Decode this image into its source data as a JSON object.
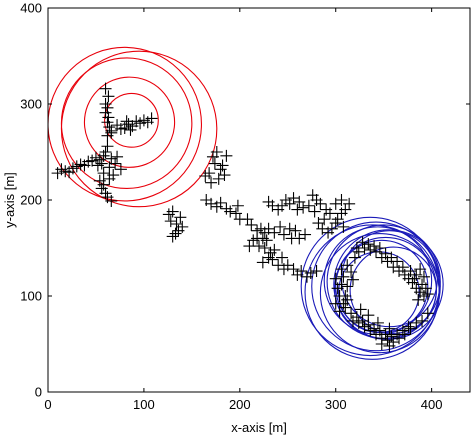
{
  "chart_data": {
    "type": "scatter",
    "xlabel": "x-axis [m]",
    "ylabel": "y-axis [m]",
    "xlim": [
      0,
      440
    ],
    "ylim": [
      0,
      400
    ],
    "xticks": [
      "0",
      "100",
      "200",
      "300",
      "400"
    ],
    "yticks": [
      "0",
      "100",
      "200",
      "300",
      "400"
    ],
    "grid": false,
    "marker_color": "#000000",
    "points": [
      [
        10,
        228
      ],
      [
        14,
        232
      ],
      [
        18,
        230
      ],
      [
        22,
        229
      ],
      [
        26,
        233
      ],
      [
        30,
        235
      ],
      [
        34,
        237
      ],
      [
        38,
        236
      ],
      [
        42,
        240
      ],
      [
        46,
        241
      ],
      [
        50,
        244
      ],
      [
        54,
        242
      ],
      [
        60,
        250
      ],
      [
        58,
        246
      ],
      [
        62,
        256
      ],
      [
        66,
        243
      ],
      [
        70,
        238
      ],
      [
        76,
        232
      ],
      [
        72,
        245
      ],
      [
        64,
        234
      ],
      [
        56,
        238
      ],
      [
        52,
        236
      ],
      [
        60,
        300
      ],
      [
        62,
        296
      ],
      [
        60,
        291
      ],
      [
        63,
        286
      ],
      [
        62,
        281
      ],
      [
        64,
        276
      ],
      [
        66,
        272
      ],
      [
        62,
        267
      ],
      [
        60,
        316
      ],
      [
        63,
        308
      ],
      [
        66,
        270
      ],
      [
        72,
        278
      ],
      [
        80,
        275
      ],
      [
        84,
        279
      ],
      [
        88,
        277
      ],
      [
        92,
        282
      ],
      [
        96,
        280
      ],
      [
        100,
        283
      ],
      [
        104,
        281
      ],
      [
        108,
        285
      ],
      [
        82,
        282
      ],
      [
        76,
        274
      ],
      [
        86,
        273
      ],
      [
        56,
        212
      ],
      [
        58,
        216
      ],
      [
        60,
        207
      ],
      [
        62,
        203
      ],
      [
        66,
        199
      ],
      [
        64,
        222
      ],
      [
        54,
        220
      ],
      [
        58,
        228
      ],
      [
        68,
        226
      ],
      [
        164,
        225
      ],
      [
        168,
        228
      ],
      [
        172,
        245
      ],
      [
        176,
        250
      ],
      [
        174,
        238
      ],
      [
        180,
        232
      ],
      [
        184,
        226
      ],
      [
        178,
        222
      ],
      [
        170,
        218
      ],
      [
        186,
        246
      ],
      [
        182,
        236
      ],
      [
        165,
        200
      ],
      [
        170,
        196
      ],
      [
        176,
        193
      ],
      [
        186,
        191
      ],
      [
        180,
        197
      ],
      [
        190,
        188
      ],
      [
        198,
        194
      ],
      [
        196,
        186
      ],
      [
        200,
        180
      ],
      [
        126,
        185
      ],
      [
        130,
        188
      ],
      [
        134,
        175
      ],
      [
        136,
        168
      ],
      [
        130,
        162
      ],
      [
        128,
        178
      ],
      [
        138,
        182
      ],
      [
        140,
        172
      ],
      [
        133,
        165
      ],
      [
        208,
        180
      ],
      [
        212,
        174
      ],
      [
        218,
        168
      ],
      [
        222,
        170
      ],
      [
        226,
        166
      ],
      [
        214,
        158
      ],
      [
        220,
        152
      ],
      [
        226,
        150
      ],
      [
        232,
        145
      ],
      [
        236,
        148
      ],
      [
        230,
        140
      ],
      [
        224,
        135
      ],
      [
        218,
        160
      ],
      [
        210,
        152
      ],
      [
        228,
        158
      ],
      [
        230,
        198
      ],
      [
        234,
        194
      ],
      [
        240,
        190
      ],
      [
        244,
        194
      ],
      [
        248,
        200
      ],
      [
        252,
        196
      ],
      [
        256,
        202
      ],
      [
        262,
        198
      ],
      [
        266,
        192
      ],
      [
        260,
        190
      ],
      [
        224,
        160
      ],
      [
        230,
        170
      ],
      [
        236,
        166
      ],
      [
        242,
        172
      ],
      [
        246,
        164
      ],
      [
        252,
        170
      ],
      [
        258,
        168
      ],
      [
        262,
        160
      ],
      [
        268,
        164
      ],
      [
        254,
        160
      ],
      [
        234,
        138
      ],
      [
        240,
        132
      ],
      [
        246,
        128
      ],
      [
        250,
        132
      ],
      [
        256,
        128
      ],
      [
        260,
        122
      ],
      [
        264,
        126
      ],
      [
        270,
        120
      ],
      [
        274,
        124
      ],
      [
        280,
        126
      ],
      [
        244,
        140
      ],
      [
        276,
        205
      ],
      [
        280,
        200
      ],
      [
        284,
        196
      ],
      [
        290,
        190
      ],
      [
        294,
        186
      ],
      [
        288,
        180
      ],
      [
        282,
        176
      ],
      [
        286,
        170
      ],
      [
        292,
        166
      ],
      [
        296,
        170
      ],
      [
        300,
        176
      ],
      [
        302,
        180
      ],
      [
        306,
        186
      ],
      [
        310,
        190
      ],
      [
        314,
        196
      ],
      [
        306,
        200
      ],
      [
        300,
        196
      ],
      [
        278,
        188
      ],
      [
        272,
        194
      ],
      [
        308,
        172
      ],
      [
        302,
        108
      ],
      [
        306,
        112
      ],
      [
        300,
        118
      ],
      [
        308,
        120
      ],
      [
        304,
        100
      ],
      [
        312,
        110
      ],
      [
        310,
        100
      ],
      [
        316,
        125
      ],
      [
        312,
        132
      ],
      [
        306,
        128
      ],
      [
        318,
        117
      ],
      [
        320,
        140
      ],
      [
        324,
        146
      ],
      [
        330,
        150
      ],
      [
        336,
        148
      ],
      [
        342,
        146
      ],
      [
        348,
        140
      ],
      [
        354,
        136
      ],
      [
        360,
        130
      ],
      [
        366,
        126
      ],
      [
        372,
        122
      ],
      [
        376,
        118
      ],
      [
        322,
        150
      ],
      [
        328,
        156
      ],
      [
        334,
        154
      ],
      [
        340,
        152
      ],
      [
        346,
        150
      ],
      [
        352,
        144
      ],
      [
        358,
        140
      ],
      [
        364,
        136
      ],
      [
        370,
        130
      ],
      [
        378,
        126
      ],
      [
        384,
        122
      ],
      [
        380,
        114
      ],
      [
        384,
        108
      ],
      [
        388,
        104
      ],
      [
        392,
        100
      ],
      [
        386,
        96
      ],
      [
        382,
        118
      ],
      [
        390,
        112
      ],
      [
        394,
        108
      ],
      [
        396,
        102
      ],
      [
        388,
        128
      ],
      [
        392,
        120
      ],
      [
        310,
        88
      ],
      [
        316,
        82
      ],
      [
        322,
        78
      ],
      [
        328,
        74
      ],
      [
        334,
        70
      ],
      [
        340,
        66
      ],
      [
        346,
        64
      ],
      [
        352,
        60
      ],
      [
        358,
        58
      ],
      [
        364,
        60
      ],
      [
        370,
        64
      ],
      [
        376,
        68
      ],
      [
        318,
        74
      ],
      [
        324,
        72
      ],
      [
        330,
        68
      ],
      [
        336,
        64
      ],
      [
        342,
        60
      ],
      [
        348,
        56
      ],
      [
        354,
        54
      ],
      [
        360,
        52
      ],
      [
        366,
        56
      ],
      [
        372,
        60
      ],
      [
        378,
        66
      ],
      [
        384,
        72
      ],
      [
        304,
        84
      ],
      [
        308,
        92
      ],
      [
        300,
        92
      ],
      [
        312,
        96
      ],
      [
        326,
        86
      ],
      [
        334,
        80
      ],
      [
        344,
        72
      ],
      [
        356,
        66
      ],
      [
        390,
        74
      ],
      [
        396,
        82
      ],
      [
        356,
        48
      ],
      [
        348,
        50
      ]
    ],
    "circles": [
      {
        "cx": 87,
        "cy": 283,
        "r": 28,
        "color": "#e8000b"
      },
      {
        "cx": 85,
        "cy": 281,
        "r": 47,
        "color": "#e8000b"
      },
      {
        "cx": 82,
        "cy": 280,
        "r": 68,
        "color": "#e8000b"
      },
      {
        "cx": 80,
        "cy": 279,
        "r": 80,
        "color": "#e8000b"
      },
      {
        "cx": 95,
        "cy": 274,
        "r": 81,
        "color": "#e8000b"
      },
      {
        "cx": 345,
        "cy": 104,
        "r": 42,
        "color": "#1a1ab8"
      },
      {
        "cx": 348,
        "cy": 110,
        "r": 48,
        "color": "#1a1ab8"
      },
      {
        "cx": 352,
        "cy": 108,
        "r": 53,
        "color": "#1a1ab8"
      },
      {
        "cx": 355,
        "cy": 112,
        "r": 57,
        "color": "#1a1ab8"
      },
      {
        "cx": 350,
        "cy": 115,
        "r": 59,
        "color": "#1a1ab8"
      },
      {
        "cx": 346,
        "cy": 103,
        "r": 62,
        "color": "#1a1ab8"
      },
      {
        "cx": 342,
        "cy": 110,
        "r": 67,
        "color": "#1a1ab8"
      },
      {
        "cx": 338,
        "cy": 104,
        "r": 70,
        "color": "#1a1ab8"
      },
      {
        "cx": 336,
        "cy": 110,
        "r": 72,
        "color": "#1a1ab8"
      },
      {
        "cx": 356,
        "cy": 118,
        "r": 50,
        "color": "#1a1ab8"
      },
      {
        "cx": 360,
        "cy": 106,
        "r": 45,
        "color": "#1a1ab8"
      },
      {
        "cx": 344,
        "cy": 116,
        "r": 56,
        "color": "#1a1ab8"
      }
    ]
  }
}
